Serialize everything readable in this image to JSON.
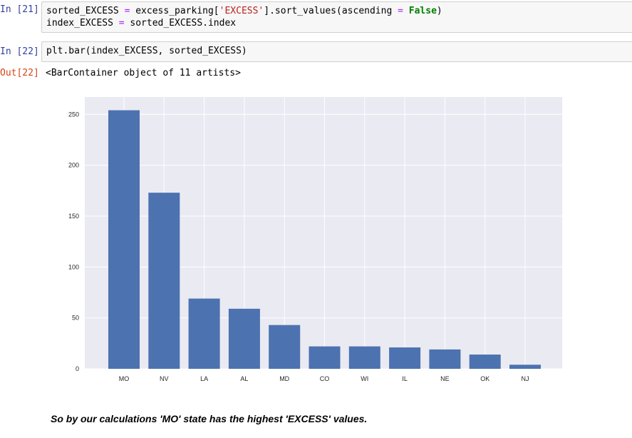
{
  "cells": [
    {
      "prompt": "In [21]:",
      "lines": [
        [
          {
            "t": "sorted_EXCESS ",
            "c": ""
          },
          {
            "t": "=",
            "c": "op"
          },
          {
            "t": " excess_parking[",
            "c": ""
          },
          {
            "t": "'EXCESS'",
            "c": "str"
          },
          {
            "t": "].sort_values(ascending ",
            "c": ""
          },
          {
            "t": "=",
            "c": "op"
          },
          {
            "t": " ",
            "c": ""
          },
          {
            "t": "False",
            "c": "kw"
          },
          {
            "t": ")",
            "c": ""
          }
        ],
        [
          {
            "t": "index_EXCESS ",
            "c": ""
          },
          {
            "t": "=",
            "c": "op"
          },
          {
            "t": " sorted_EXCESS.index",
            "c": ""
          }
        ]
      ]
    },
    {
      "prompt": "In [22]:",
      "lines": [
        [
          {
            "t": "plt.bar(index_EXCESS, sorted_EXCESS)",
            "c": ""
          }
        ]
      ]
    }
  ],
  "output": {
    "prompt": "Out[22]:",
    "text": "<BarContainer object of 11 artists>"
  },
  "chart_data": {
    "type": "bar",
    "categories": [
      "MO",
      "NV",
      "LA",
      "AL",
      "MD",
      "CO",
      "WI",
      "IL",
      "NE",
      "OK",
      "NJ"
    ],
    "values": [
      254,
      173,
      69,
      59,
      43,
      22,
      22,
      21,
      19,
      14,
      4
    ],
    "yticks": [
      0,
      50,
      100,
      150,
      200,
      250
    ],
    "ylim": [
      0,
      267
    ],
    "grid": true,
    "bar_color": "#4c72b0",
    "background_color": "#eaeaf2",
    "title": "",
    "xlabel": "",
    "ylabel": ""
  },
  "markdown_text": "So by our calculations 'MO' state has the highest 'EXCESS' values."
}
